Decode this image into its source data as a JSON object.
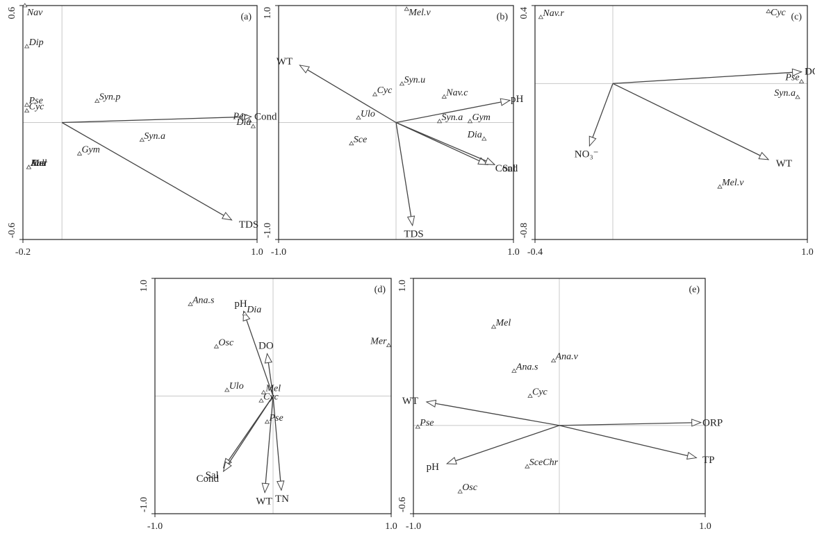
{
  "chart_data": [
    {
      "type": "scatter",
      "panel_label": "(a)",
      "xlim": [
        -0.2,
        1.0
      ],
      "ylim": [
        -0.6,
        0.6
      ],
      "x_tick_labels": [
        "-0.2",
        "1.0"
      ],
      "y_tick_labels": [
        "0.6",
        "-0.6"
      ],
      "env_vectors": [
        {
          "name": "Cond",
          "x": 0.97,
          "y": 0.03
        },
        {
          "name": "TDS",
          "x": 0.87,
          "y": -0.5
        }
      ],
      "species": [
        {
          "name": "Nav",
          "x": -0.19,
          "y": 0.6
        },
        {
          "name": "Dip",
          "x": -0.18,
          "y": 0.39
        },
        {
          "name": "Pse",
          "x": -0.18,
          "y": 0.09
        },
        {
          "name": "Cyc",
          "x": -0.18,
          "y": 0.06
        },
        {
          "name": "Syn.p",
          "x": 0.18,
          "y": 0.11
        },
        {
          "name": "Syn.a",
          "x": 0.41,
          "y": -0.09
        },
        {
          "name": "Gym",
          "x": 0.09,
          "y": -0.16
        },
        {
          "name": "Eud",
          "x": -0.17,
          "y": -0.23
        },
        {
          "name": "Ank",
          "x": -0.17,
          "y": -0.23
        },
        {
          "name": "Mer",
          "x": -0.17,
          "y": -0.23
        },
        {
          "name": "Per",
          "x": 0.96,
          "y": 0.01
        },
        {
          "name": "Dia",
          "x": 0.98,
          "y": -0.02
        }
      ]
    },
    {
      "type": "scatter",
      "panel_label": "(b)",
      "xlim": [
        -1.0,
        1.0
      ],
      "ylim": [
        -1.0,
        1.0
      ],
      "x_tick_labels": [
        "-1.0",
        "1.0"
      ],
      "y_tick_labels": [
        "1.0",
        "-1.0"
      ],
      "env_vectors": [
        {
          "name": "WT",
          "x": -0.82,
          "y": 0.49
        },
        {
          "name": "pH",
          "x": 0.97,
          "y": 0.19
        },
        {
          "name": "Cond",
          "x": 0.78,
          "y": -0.36
        },
        {
          "name": "Sal",
          "x": 0.84,
          "y": -0.36
        },
        {
          "name": "TDS",
          "x": 0.14,
          "y": -0.88
        }
      ],
      "species": [
        {
          "name": "Mel.v",
          "x": 0.09,
          "y": 0.97
        },
        {
          "name": "Syn.u",
          "x": 0.05,
          "y": 0.33
        },
        {
          "name": "Nav.c",
          "x": 0.41,
          "y": 0.22
        },
        {
          "name": "Cyc",
          "x": -0.18,
          "y": 0.24
        },
        {
          "name": "Ulo",
          "x": -0.32,
          "y": 0.04
        },
        {
          "name": "Sce",
          "x": -0.38,
          "y": -0.18
        },
        {
          "name": "Syn.a",
          "x": 0.37,
          "y": 0.01
        },
        {
          "name": "Gym",
          "x": 0.63,
          "y": 0.01
        },
        {
          "name": "Dia",
          "x": 0.75,
          "y": -0.14
        }
      ]
    },
    {
      "type": "scatter",
      "panel_label": "(c)",
      "xlim": [
        -0.4,
        1.0
      ],
      "ylim": [
        -0.8,
        0.4
      ],
      "x_tick_labels": [
        "-0.4",
        "1.0"
      ],
      "y_tick_labels": [
        "0.4",
        "-0.8"
      ],
      "env_vectors": [
        {
          "name": "DO",
          "x": 0.97,
          "y": 0.06
        },
        {
          "name": "WT",
          "x": 0.8,
          "y": -0.39
        },
        {
          "name": "NO₃⁻",
          "x": -0.12,
          "y": -0.32
        }
      ],
      "species": [
        {
          "name": "Cyc",
          "x": 0.8,
          "y": 0.37
        },
        {
          "name": "Nav.r",
          "x": -0.37,
          "y": 0.34
        },
        {
          "name": "Pse",
          "x": 0.97,
          "y": 0.01
        },
        {
          "name": "Syn.a",
          "x": 0.95,
          "y": -0.07
        },
        {
          "name": "Mel.v",
          "x": 0.55,
          "y": -0.53
        }
      ]
    },
    {
      "type": "scatter",
      "panel_label": "(d)",
      "xlim": [
        -1.0,
        1.0
      ],
      "ylim": [
        -1.0,
        1.0
      ],
      "x_tick_labels": [
        "-1.0",
        "1.0"
      ],
      "y_tick_labels": [
        "1.0",
        "-1.0"
      ],
      "env_vectors": [
        {
          "name": "pH",
          "x": -0.25,
          "y": 0.72
        },
        {
          "name": "DO",
          "x": -0.05,
          "y": 0.36
        },
        {
          "name": "Sal",
          "x": -0.42,
          "y": -0.61
        },
        {
          "name": "Cond",
          "x": -0.42,
          "y": -0.64
        },
        {
          "name": "WT",
          "x": -0.07,
          "y": -0.82
        },
        {
          "name": "TN",
          "x": 0.07,
          "y": -0.8
        }
      ],
      "species": [
        {
          "name": "Ana.s",
          "x": -0.7,
          "y": 0.78
        },
        {
          "name": "Dia",
          "x": -0.24,
          "y": 0.7
        },
        {
          "name": "Osc",
          "x": -0.48,
          "y": 0.42
        },
        {
          "name": "Ulo",
          "x": -0.39,
          "y": 0.05
        },
        {
          "name": "Mel",
          "x": -0.08,
          "y": 0.03
        },
        {
          "name": "Cyc",
          "x": -0.1,
          "y": -0.04
        },
        {
          "name": "Pse",
          "x": -0.05,
          "y": -0.22
        },
        {
          "name": "Mer",
          "x": 0.98,
          "y": 0.43
        }
      ]
    },
    {
      "type": "scatter",
      "panel_label": "(e)",
      "xlim": [
        -1.0,
        1.0
      ],
      "ylim": [
        -0.6,
        1.0
      ],
      "x_tick_labels": [
        "-1.0",
        "1.0"
      ],
      "y_tick_labels": [
        "1.0",
        "-0.6"
      ],
      "env_vectors": [
        {
          "name": "WT",
          "x": -0.91,
          "y": 0.16
        },
        {
          "name": "ORP",
          "x": 0.97,
          "y": 0.02
        },
        {
          "name": "TP",
          "x": 0.94,
          "y": -0.22
        },
        {
          "name": "pH",
          "x": -0.77,
          "y": -0.26
        }
      ],
      "species": [
        {
          "name": "Mel",
          "x": -0.45,
          "y": 0.67
        },
        {
          "name": "Ana.v",
          "x": -0.04,
          "y": 0.44
        },
        {
          "name": "Ana.s",
          "x": -0.31,
          "y": 0.37
        },
        {
          "name": "Cyc",
          "x": -0.2,
          "y": 0.2
        },
        {
          "name": "Pse",
          "x": -0.97,
          "y": -0.01
        },
        {
          "name": "SceChr",
          "x": -0.22,
          "y": -0.28
        },
        {
          "name": "Osc",
          "x": -0.68,
          "y": -0.45
        }
      ]
    }
  ]
}
